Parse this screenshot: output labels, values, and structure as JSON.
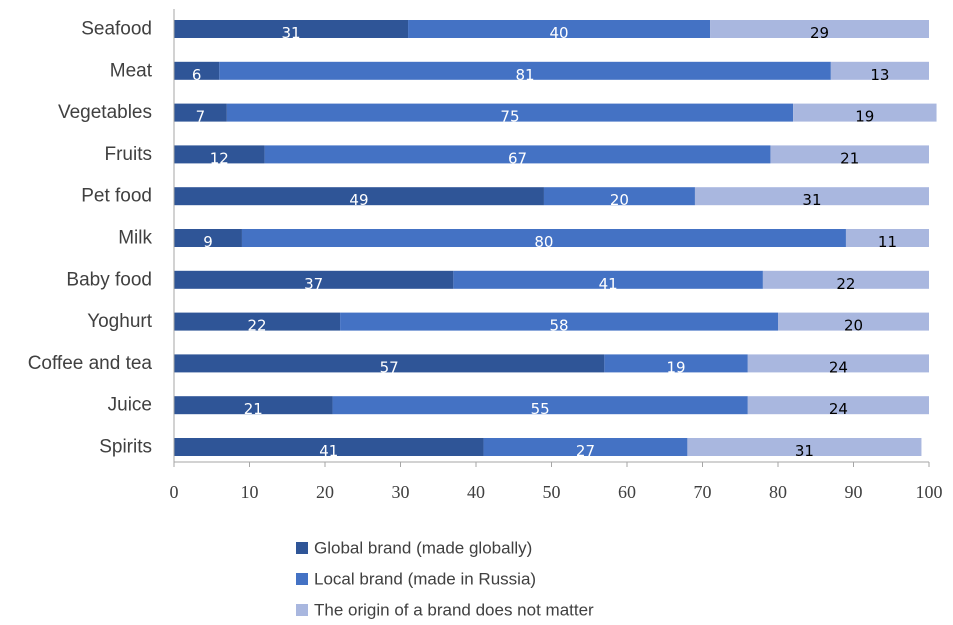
{
  "chart_data": {
    "type": "bar",
    "orientation": "horizontal",
    "stacked": true,
    "categories": [
      "Seafood",
      "Meat",
      "Vegetables",
      "Fruits",
      "Pet food",
      "Milk",
      "Baby food",
      "Yoghurt",
      "Coffee and tea",
      "Juice",
      "Spirits"
    ],
    "series": [
      {
        "name": "Global brand (made globally)",
        "color": "#2f5597",
        "values": [
          31,
          6,
          7,
          12,
          49,
          9,
          37,
          22,
          57,
          21,
          41
        ]
      },
      {
        "name": "Local brand (made in Russia)",
        "color": "#4472c4",
        "values": [
          40,
          81,
          75,
          67,
          20,
          80,
          41,
          58,
          19,
          55,
          27
        ]
      },
      {
        "name": "The origin of a brand does not matter",
        "color": "#a9b7df",
        "values": [
          29,
          13,
          19,
          21,
          31,
          11,
          22,
          20,
          24,
          24,
          31
        ]
      }
    ],
    "xlim": [
      0,
      100
    ],
    "x_ticks": [
      "0",
      "10",
      "20",
      "30",
      "40",
      "50",
      "60",
      "70",
      "80",
      "90",
      "100"
    ],
    "grid": false,
    "legend_position": "bottom"
  }
}
